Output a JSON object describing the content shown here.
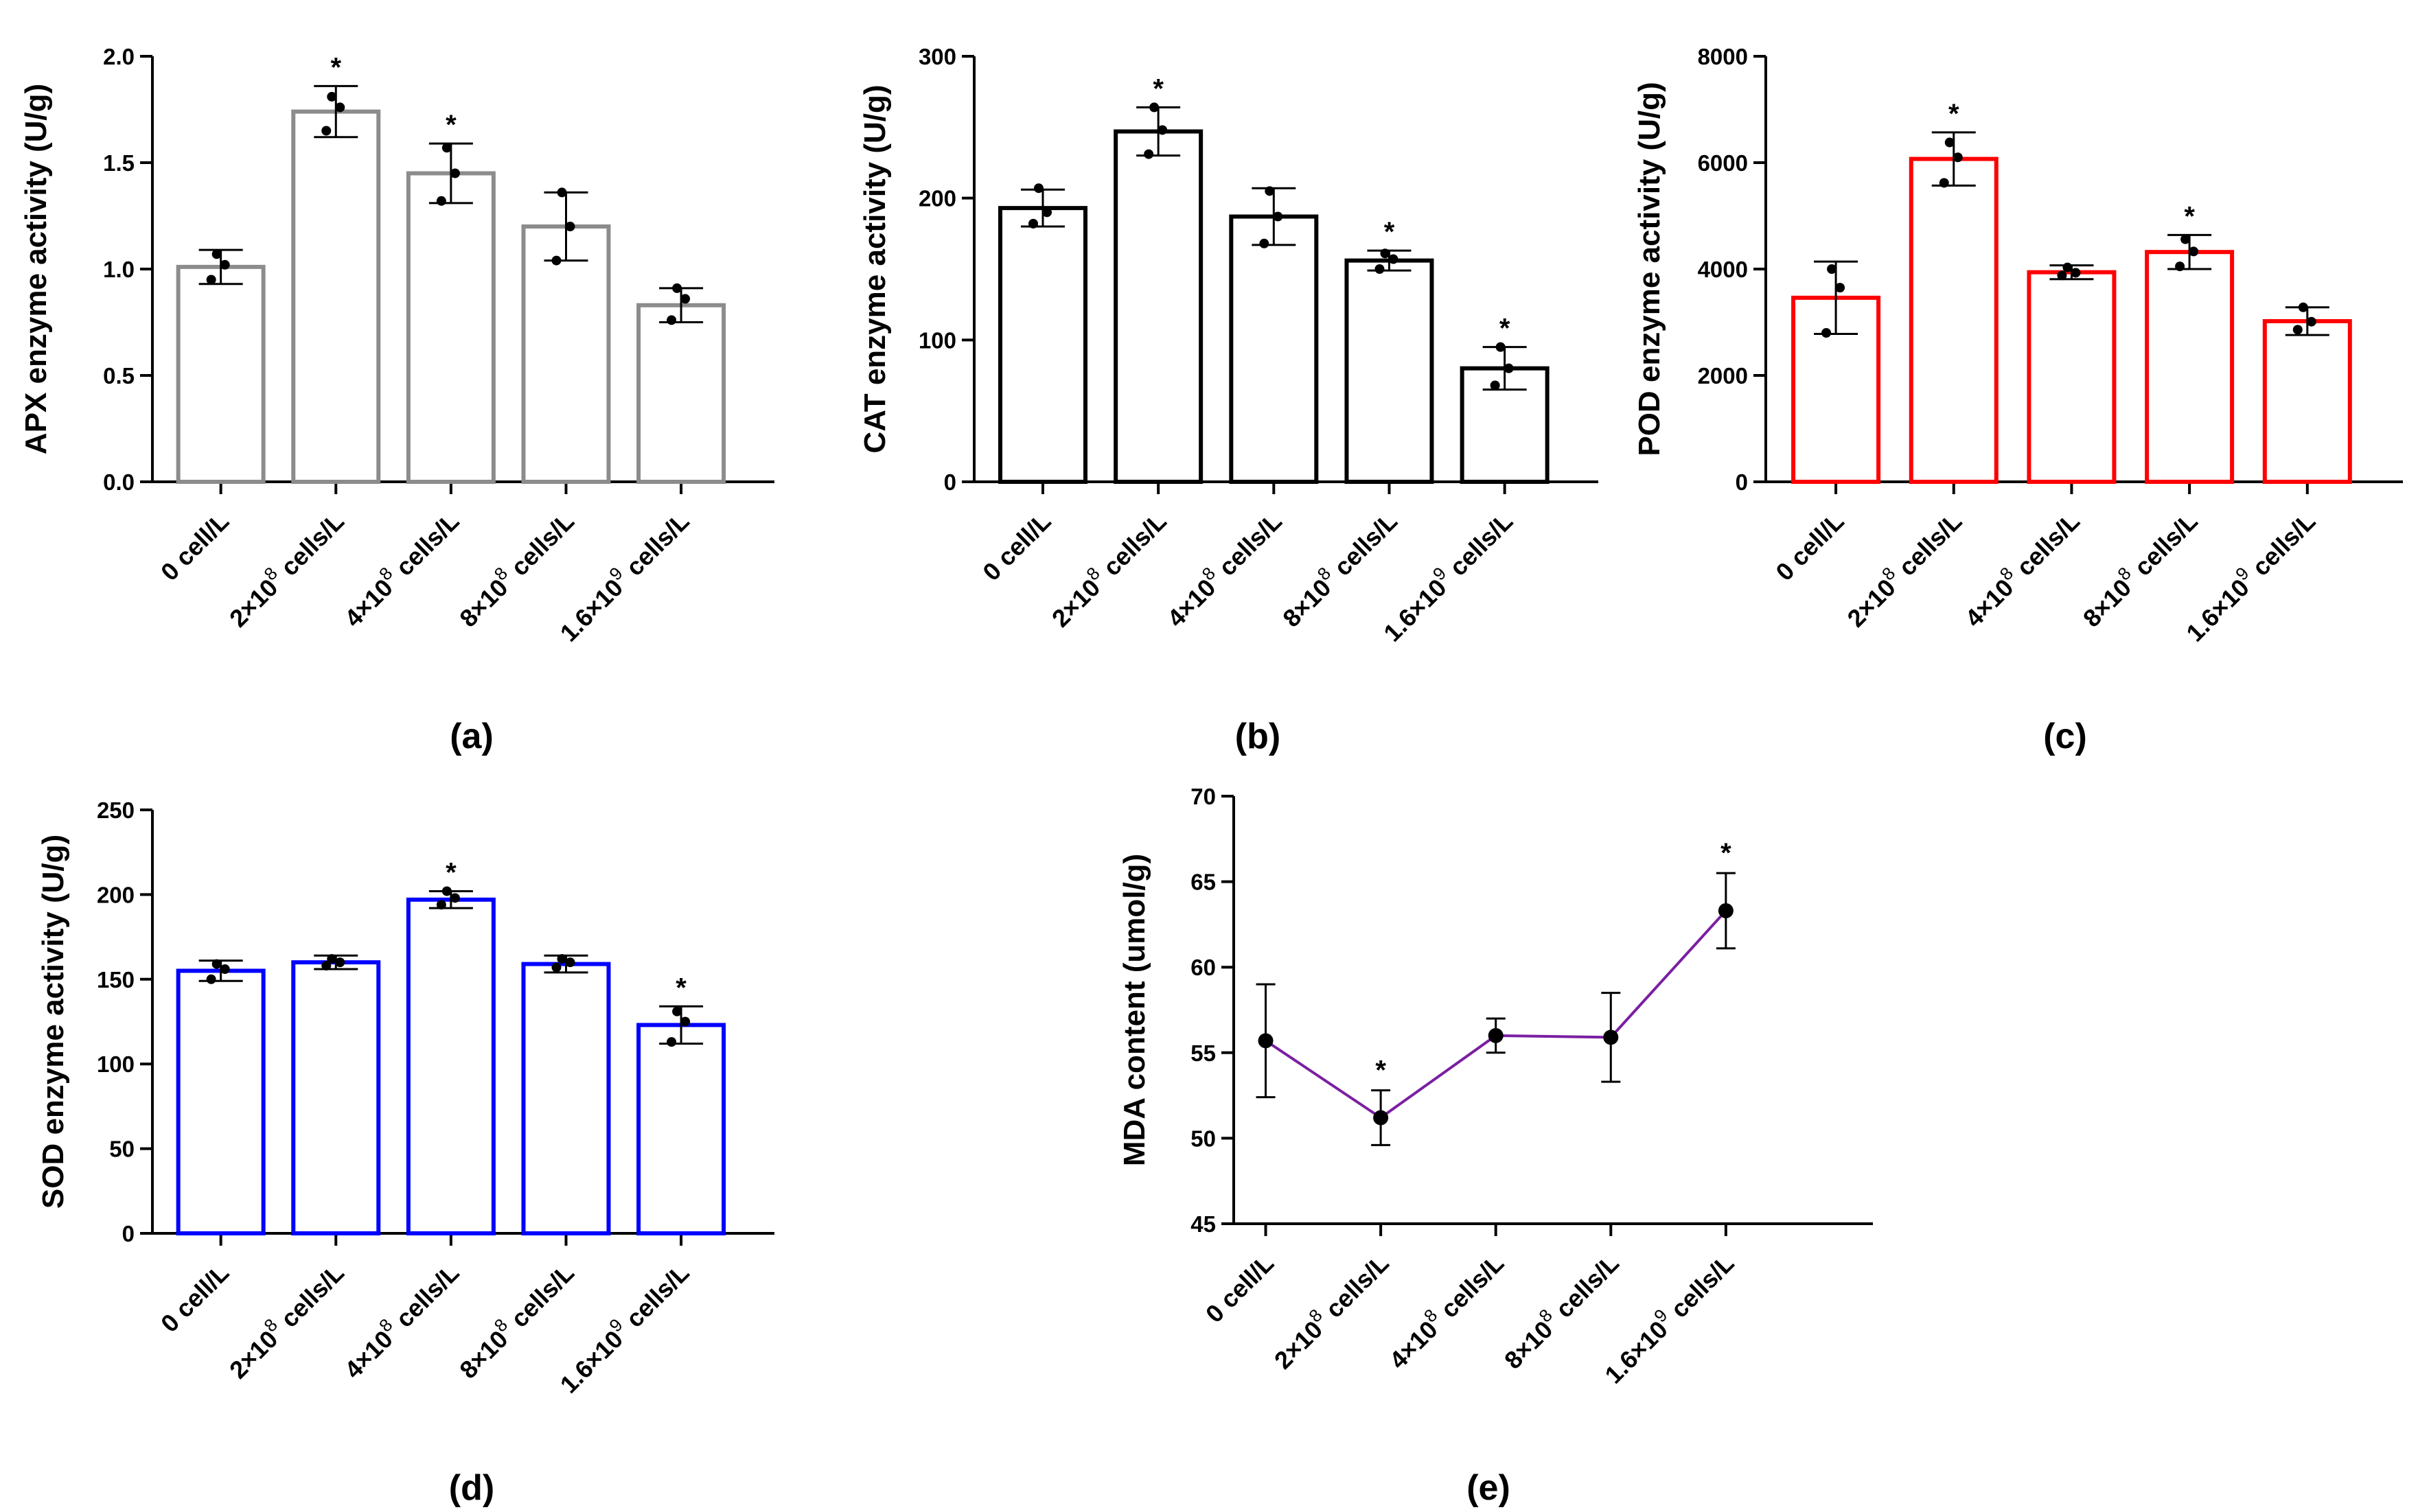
{
  "chart_data": [
    {
      "id": "a",
      "type": "bar",
      "panel_label": "(a)",
      "ylabel": "APX enzyme activity (U/g)",
      "ylim": [
        0,
        2.0
      ],
      "yticks": [
        "0.0",
        "0.5",
        "1.0",
        "1.5",
        "2.0"
      ],
      "ytick_values": [
        0,
        0.5,
        1.0,
        1.5,
        2.0
      ],
      "categories": [
        {
          "base": "0 cell/L",
          "sup": ""
        },
        {
          "base": "2×10",
          "sup": "8",
          "tail": " cells/L"
        },
        {
          "base": "4×10",
          "sup": "8",
          "tail": " cells/L"
        },
        {
          "base": "8×10",
          "sup": "8",
          "tail": " cells/L"
        },
        {
          "base": "1.6×10",
          "sup": "9",
          "tail": " cells/L"
        }
      ],
      "values": [
        1.01,
        1.74,
        1.45,
        1.2,
        0.83
      ],
      "errors": [
        0.08,
        0.12,
        0.14,
        0.16,
        0.08
      ],
      "points": [
        [
          1.07,
          1.02,
          0.95
        ],
        [
          1.81,
          1.76,
          1.65
        ],
        [
          1.57,
          1.45,
          1.32
        ],
        [
          1.36,
          1.2,
          1.04
        ],
        [
          0.91,
          0.86,
          0.76
        ]
      ],
      "significant": [
        "",
        "*",
        "*",
        "",
        ""
      ],
      "color": "#8c8c8c"
    },
    {
      "id": "b",
      "type": "bar",
      "panel_label": "(b)",
      "ylabel": "CAT enzyme activity (U/g)",
      "ylim": [
        0,
        300
      ],
      "yticks": [
        "0",
        "100",
        "200",
        "300"
      ],
      "ytick_values": [
        0,
        100,
        200,
        300
      ],
      "categories": [
        {
          "base": "0 cell/L",
          "sup": ""
        },
        {
          "base": "2×10",
          "sup": "8",
          "tail": " cells/L"
        },
        {
          "base": "4×10",
          "sup": "8",
          "tail": " cells/L"
        },
        {
          "base": "8×10",
          "sup": "8",
          "tail": " cells/L"
        },
        {
          "base": "1.6×10",
          "sup": "9",
          "tail": " cells/L"
        }
      ],
      "values": [
        193,
        247,
        187,
        156,
        80
      ],
      "errors": [
        13,
        17,
        20,
        7,
        15
      ],
      "points": [
        [
          207,
          190,
          182
        ],
        [
          264,
          248,
          231
        ],
        [
          205,
          187,
          168
        ],
        [
          161,
          157,
          150
        ],
        [
          95,
          80,
          68
        ]
      ],
      "significant": [
        "",
        "*",
        "",
        "*",
        "*"
      ],
      "color": "#000000"
    },
    {
      "id": "c",
      "type": "bar",
      "panel_label": "(c)",
      "ylabel": "POD enzyme activity (U/g)",
      "ylim": [
        0,
        8000
      ],
      "yticks": [
        "0",
        "2000",
        "4000",
        "6000",
        "8000"
      ],
      "ytick_values": [
        0,
        2000,
        4000,
        6000,
        8000
      ],
      "categories": [
        {
          "base": "0 cell/L",
          "sup": ""
        },
        {
          "base": "2×10",
          "sup": "8",
          "tail": " cells/L"
        },
        {
          "base": "4×10",
          "sup": "8",
          "tail": " cells/L"
        },
        {
          "base": "8×10",
          "sup": "8",
          "tail": " cells/L"
        },
        {
          "base": "1.6×10",
          "sup": "9",
          "tail": " cells/L"
        }
      ],
      "values": [
        3460,
        6070,
        3940,
        4320,
        3020
      ],
      "errors": [
        680,
        500,
        130,
        320,
        260
      ],
      "points": [
        [
          4000,
          3650,
          2800
        ],
        [
          6380,
          6100,
          5620
        ],
        [
          4030,
          3930,
          3880
        ],
        [
          4560,
          4330,
          4050
        ],
        [
          3280,
          3010,
          2860
        ]
      ],
      "significant": [
        "",
        "*",
        "",
        "*",
        ""
      ],
      "color": "#ff0000"
    },
    {
      "id": "d",
      "type": "bar",
      "panel_label": "(d)",
      "ylabel": "SOD enzyme activity (U/g)",
      "ylim": [
        0,
        250
      ],
      "yticks": [
        "0",
        "50",
        "100",
        "150",
        "200",
        "250"
      ],
      "ytick_values": [
        0,
        50,
        100,
        150,
        200,
        250
      ],
      "categories": [
        {
          "base": "0 cell/L",
          "sup": ""
        },
        {
          "base": "2×10",
          "sup": "8",
          "tail": " cells/L"
        },
        {
          "base": "4×10",
          "sup": "8",
          "tail": " cells/L"
        },
        {
          "base": "8×10",
          "sup": "8",
          "tail": " cells/L"
        },
        {
          "base": "1.6×10",
          "sup": "9",
          "tail": " cells/L"
        }
      ],
      "values": [
        155,
        160,
        197,
        159,
        123
      ],
      "errors": [
        6,
        4,
        5,
        5,
        11
      ],
      "points": [
        [
          159,
          156,
          150
        ],
        [
          162,
          160,
          158
        ],
        [
          202,
          198,
          194
        ],
        [
          162,
          160,
          157
        ],
        [
          131,
          125,
          113
        ]
      ],
      "significant": [
        "",
        "",
        "*",
        "",
        "*"
      ],
      "color": "#0000ff"
    },
    {
      "id": "e",
      "type": "line",
      "panel_label": "(e)",
      "ylabel": "MDA content (umol/g)",
      "ylim": [
        45,
        70
      ],
      "yticks": [
        "45",
        "50",
        "55",
        "60",
        "65",
        "70"
      ],
      "ytick_values": [
        45,
        50,
        55,
        60,
        65,
        70
      ],
      "categories": [
        {
          "base": "0 cell/L",
          "sup": ""
        },
        {
          "base": "2×10",
          "sup": "8",
          "tail": " cells/L"
        },
        {
          "base": "4×10",
          "sup": "8",
          "tail": " cells/L"
        },
        {
          "base": "8×10",
          "sup": "8",
          "tail": " cells/L"
        },
        {
          "base": "1.6×10",
          "sup": "9",
          "tail": " cells/L"
        }
      ],
      "values": [
        55.7,
        51.2,
        56.0,
        55.9,
        63.3
      ],
      "errors": [
        3.3,
        1.6,
        1.0,
        2.6,
        2.2
      ],
      "significant": [
        "",
        "*",
        "",
        "",
        "*"
      ],
      "color": "#7b1fa2"
    }
  ]
}
